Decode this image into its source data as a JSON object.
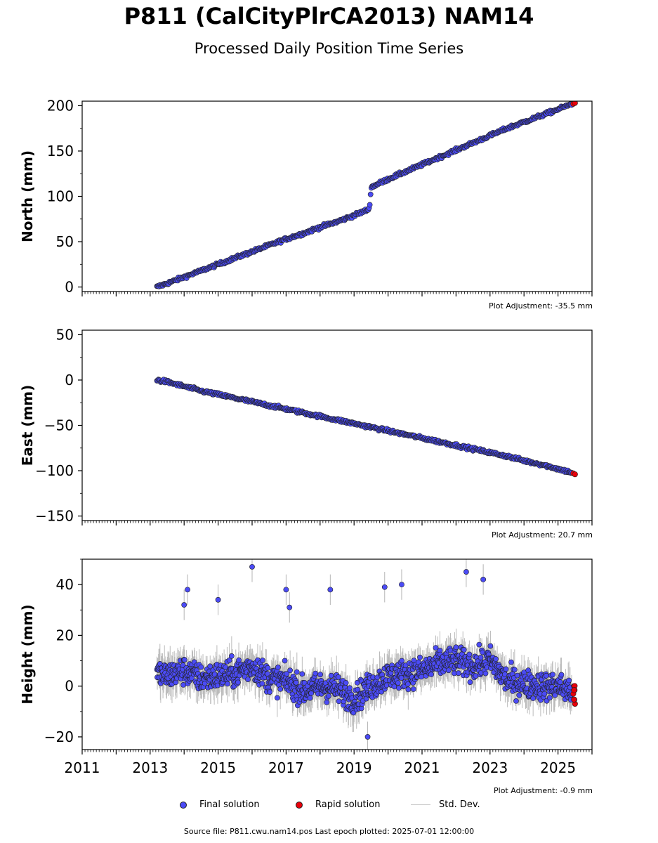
{
  "header": {
    "title": "P811 (CalCityPlrCA2013) NAM14",
    "subtitle": "Processed Daily Position Time Series"
  },
  "adjustments": {
    "north": "Plot Adjustment: -35.5 mm",
    "east": "Plot Adjustment: 20.7 mm",
    "height": "Plot Adjustment: -0.9 mm"
  },
  "legend": {
    "final": "Final solution",
    "rapid": "Rapid solution",
    "std": "Std. Dev."
  },
  "footer": {
    "source": "Source file: P811.cwu.nam14.pos  Last epoch plotted: 2025-07-01 12:00:00"
  },
  "colors": {
    "final": "#4b4bf5",
    "rapid": "#e8000b",
    "std": "#b4b4b4",
    "edge": "#222222"
  },
  "chart_data": [
    {
      "type": "scatter",
      "ylabel": "North (mm)",
      "xlim": [
        2011.0,
        2026.0
      ],
      "ylim": [
        -5,
        205
      ],
      "yticks": [
        0,
        50,
        100,
        150,
        200
      ],
      "series": [
        {
          "name": "Final solution",
          "x": [
            2013.2,
            2013.5,
            2014.0,
            2014.5,
            2015.0,
            2015.5,
            2016.0,
            2016.5,
            2017.0,
            2017.5,
            2018.0,
            2018.5,
            2019.0,
            2019.45,
            2019.5,
            2020.0,
            2020.5,
            2021.0,
            2021.5,
            2022.0,
            2022.5,
            2023.0,
            2023.5,
            2024.0,
            2024.5,
            2025.0,
            2025.4
          ],
          "y": [
            0,
            4,
            11,
            18,
            25,
            32,
            39,
            46,
            53,
            59,
            66,
            72,
            79,
            86,
            110,
            119,
            127,
            135,
            143,
            151,
            159,
            167,
            175,
            182,
            189,
            196,
            202
          ]
        },
        {
          "name": "Rapid solution",
          "x": [
            2025.45,
            2025.5
          ],
          "y": [
            202,
            203
          ]
        }
      ]
    },
    {
      "type": "scatter",
      "ylabel": "East (mm)",
      "xlim": [
        2011.0,
        2026.0
      ],
      "ylim": [
        -155,
        55
      ],
      "yticks": [
        50,
        0,
        -50,
        -100,
        -150
      ],
      "series": [
        {
          "name": "Final solution",
          "x": [
            2013.2,
            2013.5,
            2014.0,
            2014.5,
            2015.0,
            2015.5,
            2016.0,
            2016.5,
            2017.0,
            2017.5,
            2018.0,
            2018.5,
            2019.0,
            2019.5,
            2020.0,
            2020.5,
            2021.0,
            2021.5,
            2022.0,
            2022.5,
            2023.0,
            2023.5,
            2024.0,
            2024.5,
            2025.0,
            2025.4
          ],
          "y": [
            0,
            -2,
            -7,
            -12,
            -16,
            -20,
            -24,
            -28,
            -32,
            -36,
            -40,
            -44,
            -48,
            -52,
            -56,
            -60,
            -64,
            -68,
            -72,
            -76,
            -80,
            -84,
            -89,
            -93,
            -98,
            -102
          ]
        },
        {
          "name": "Rapid solution",
          "x": [
            2025.45,
            2025.5
          ],
          "y": [
            -103,
            -104
          ]
        }
      ]
    },
    {
      "type": "scatter",
      "ylabel": "Height (mm)",
      "xlim": [
        2011.0,
        2026.0
      ],
      "ylim": [
        -25,
        50
      ],
      "yticks": [
        40,
        20,
        0,
        -20
      ],
      "xticks": [
        "2011",
        "2013",
        "2015",
        "2017",
        "2019",
        "2021",
        "2023",
        "2025"
      ],
      "series": [
        {
          "name": "Final solution",
          "x": [
            2013.2,
            2013.5,
            2014.0,
            2014.5,
            2015.0,
            2015.5,
            2016.0,
            2016.5,
            2017.0,
            2017.5,
            2018.0,
            2018.5,
            2019.0,
            2019.5,
            2020.0,
            2020.5,
            2021.0,
            2021.5,
            2022.0,
            2022.5,
            2023.0,
            2023.5,
            2024.0,
            2024.5,
            2025.0,
            2025.4
          ],
          "y": [
            5,
            4,
            6,
            3,
            4,
            5,
            8,
            3,
            2,
            -2,
            0,
            -1,
            -5,
            0,
            4,
            5,
            6,
            9,
            10,
            8,
            10,
            2,
            1,
            0,
            0,
            -2
          ],
          "outliers": [
            {
              "x": 2014.1,
              "y": 38
            },
            {
              "x": 2015.0,
              "y": 34
            },
            {
              "x": 2016.0,
              "y": 47
            },
            {
              "x": 2017.0,
              "y": 38
            },
            {
              "x": 2017.1,
              "y": 31
            },
            {
              "x": 2018.3,
              "y": 38
            },
            {
              "x": 2019.9,
              "y": 39
            },
            {
              "x": 2020.4,
              "y": 40
            },
            {
              "x": 2022.3,
              "y": 45
            },
            {
              "x": 2022.8,
              "y": 42
            },
            {
              "x": 2014.0,
              "y": 32
            },
            {
              "x": 2019.4,
              "y": -20
            }
          ]
        },
        {
          "name": "Rapid solution",
          "x": [
            2025.45,
            2025.47,
            2025.5
          ],
          "y": [
            -3,
            0,
            -7
          ]
        }
      ]
    }
  ]
}
